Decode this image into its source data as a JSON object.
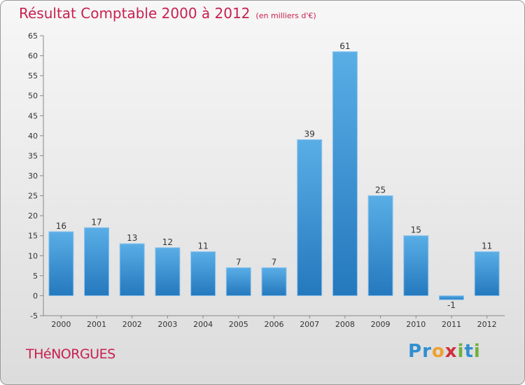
{
  "header": {
    "title": "Résultat Comptable 2000 à 2012",
    "subtitle": "(en milliers d'€)"
  },
  "footer": {
    "commune": "THéNORGUES",
    "logo_letters": [
      {
        "ch": "P",
        "color": "#2f8fd0"
      },
      {
        "ch": "r",
        "color": "#2f8fd0"
      },
      {
        "ch": "o",
        "color": "#f0a030"
      },
      {
        "ch": "x",
        "color": "#d0303a"
      },
      {
        "ch": "i",
        "color": "#6fb23a"
      },
      {
        "ch": "t",
        "color": "#2f8fd0"
      },
      {
        "ch": "i",
        "color": "#6fb23a"
      }
    ]
  },
  "chart_data": {
    "type": "bar",
    "categories": [
      "2000",
      "2001",
      "2002",
      "2003",
      "2004",
      "2005",
      "2006",
      "2007",
      "2008",
      "2009",
      "2010",
      "2011",
      "2012"
    ],
    "values": [
      16,
      17,
      13,
      12,
      11,
      7,
      7,
      39,
      61,
      25,
      15,
      -1,
      11
    ],
    "ylim": [
      -5,
      65
    ],
    "ytick_step": 5,
    "grid": false,
    "bar_color": "#3f96d8",
    "bar_color_dark": "#2478bd"
  }
}
